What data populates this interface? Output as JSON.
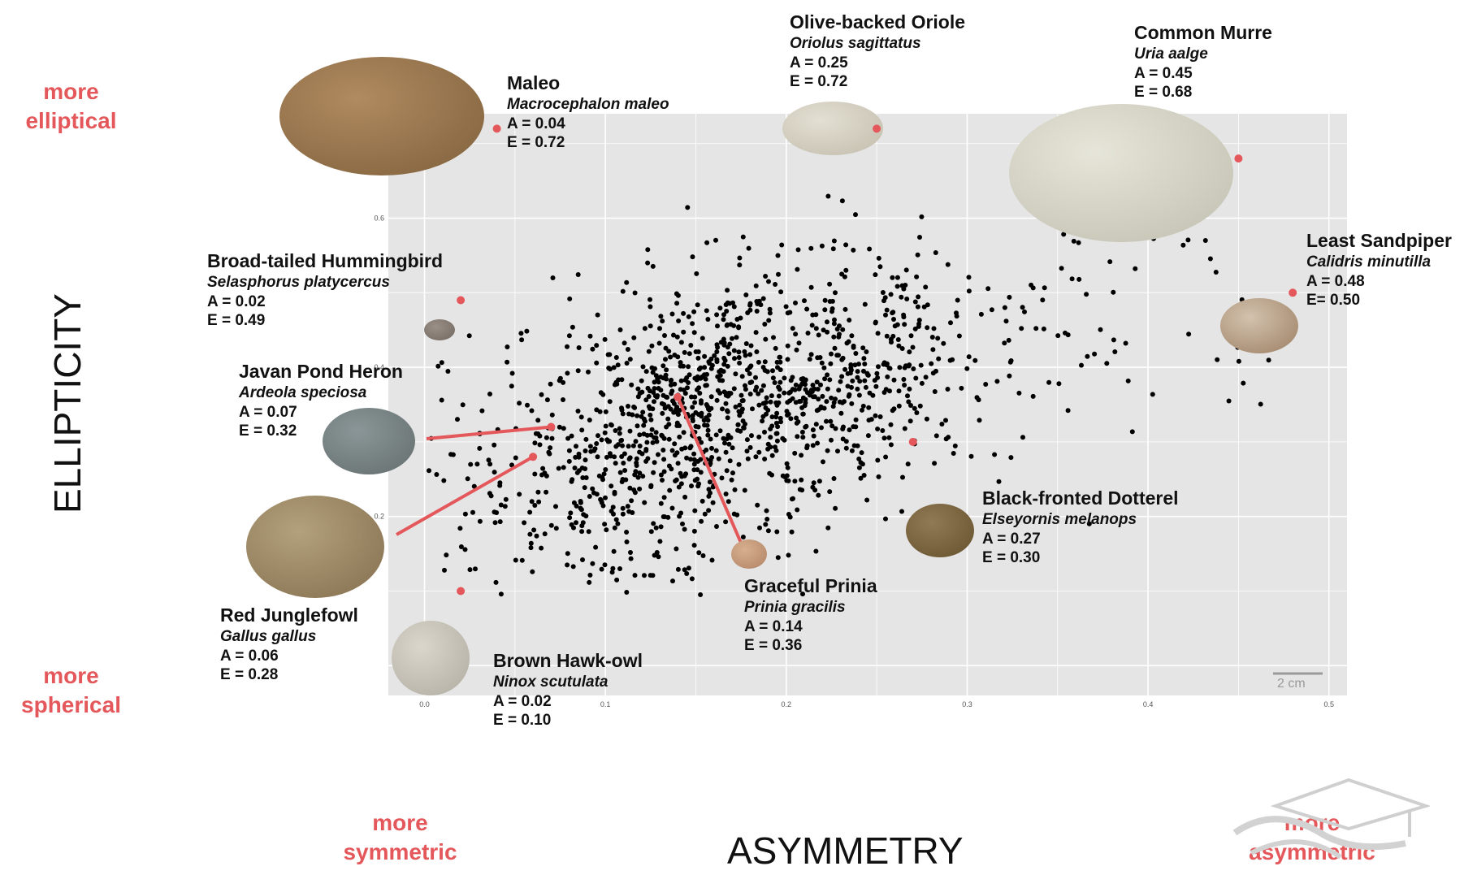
{
  "labels": {
    "more_elliptical": "more\nelliptical",
    "more_spherical": "more\nspherical",
    "more_symmetric": "more\nsymmetric",
    "more_asymmetric": "more\nasymmetric",
    "scale_bar": "2 cm"
  },
  "chart_data": {
    "type": "scatter",
    "xlabel": "ASYMMETRY",
    "ylabel": "ELLIPTICITY",
    "x_ticks": [
      "0.0",
      "0.1",
      "0.2",
      "0.3",
      "0.4",
      "0.5"
    ],
    "y_ticks": [
      "0.6",
      "0.4",
      "0.2"
    ],
    "xlim": [
      -0.02,
      0.51
    ],
    "ylim": [
      -0.04,
      0.74
    ],
    "grid": true,
    "background": "#e5e5e5",
    "point_color": "#000000",
    "highlight_color": "#e4585b",
    "cloud": {
      "n_points": 1350,
      "note_visible": false,
      "center": [
        0.16,
        0.34
      ],
      "spread": [
        0.065,
        0.09
      ]
    },
    "highlighted_species": [
      {
        "name": "Maleo",
        "species": "Macrocephalon maleo",
        "A_text": "A = 0.04",
        "E_text": "E = 0.72",
        "A": 0.04,
        "E": 0.72
      },
      {
        "name": "Olive-backed Oriole",
        "species": "Oriolus sagittatus",
        "A_text": "A = 0.25",
        "E_text": "E = 0.72",
        "A": 0.25,
        "E": 0.72
      },
      {
        "name": "Common Murre",
        "species": "Uria aalge",
        "A_text": "A = 0.45",
        "E_text": "E = 0.68",
        "A": 0.45,
        "E": 0.68
      },
      {
        "name": "Least Sandpiper",
        "species": "Calidris minutilla",
        "A_text": "A = 0.48",
        "E_text": "E= 0.50",
        "A": 0.48,
        "E": 0.5
      },
      {
        "name": "Broad-tailed Hummingbird",
        "species": "Selasphorus platycercus",
        "A_text": "A = 0.02",
        "E_text": "E = 0.49",
        "A": 0.02,
        "E": 0.49
      },
      {
        "name": "Javan Pond Heron",
        "species": "Ardeola speciosa",
        "A_text": "A = 0.07",
        "E_text": "E = 0.32",
        "A": 0.07,
        "E": 0.32
      },
      {
        "name": "Red Junglefowl",
        "species": "Gallus gallus",
        "A_text": "A = 0.06",
        "E_text": "E = 0.28",
        "A": 0.06,
        "E": 0.28
      },
      {
        "name": "Brown Hawk-owl",
        "species": "Ninox scutulata",
        "A_text": "A = 0.02",
        "E_text": "E = 0.10",
        "A": 0.02,
        "E": 0.1
      },
      {
        "name": "Graceful Prinia",
        "species": "Prinia gracilis",
        "A_text": "A = 0.14",
        "E_text": "E = 0.36",
        "A": 0.14,
        "E": 0.36
      },
      {
        "name": "Black-fronted Dotterel",
        "species": "Elseyornis melanops",
        "A_text": "A = 0.27",
        "E_text": "E = 0.30",
        "A": 0.27,
        "E": 0.3
      }
    ]
  }
}
